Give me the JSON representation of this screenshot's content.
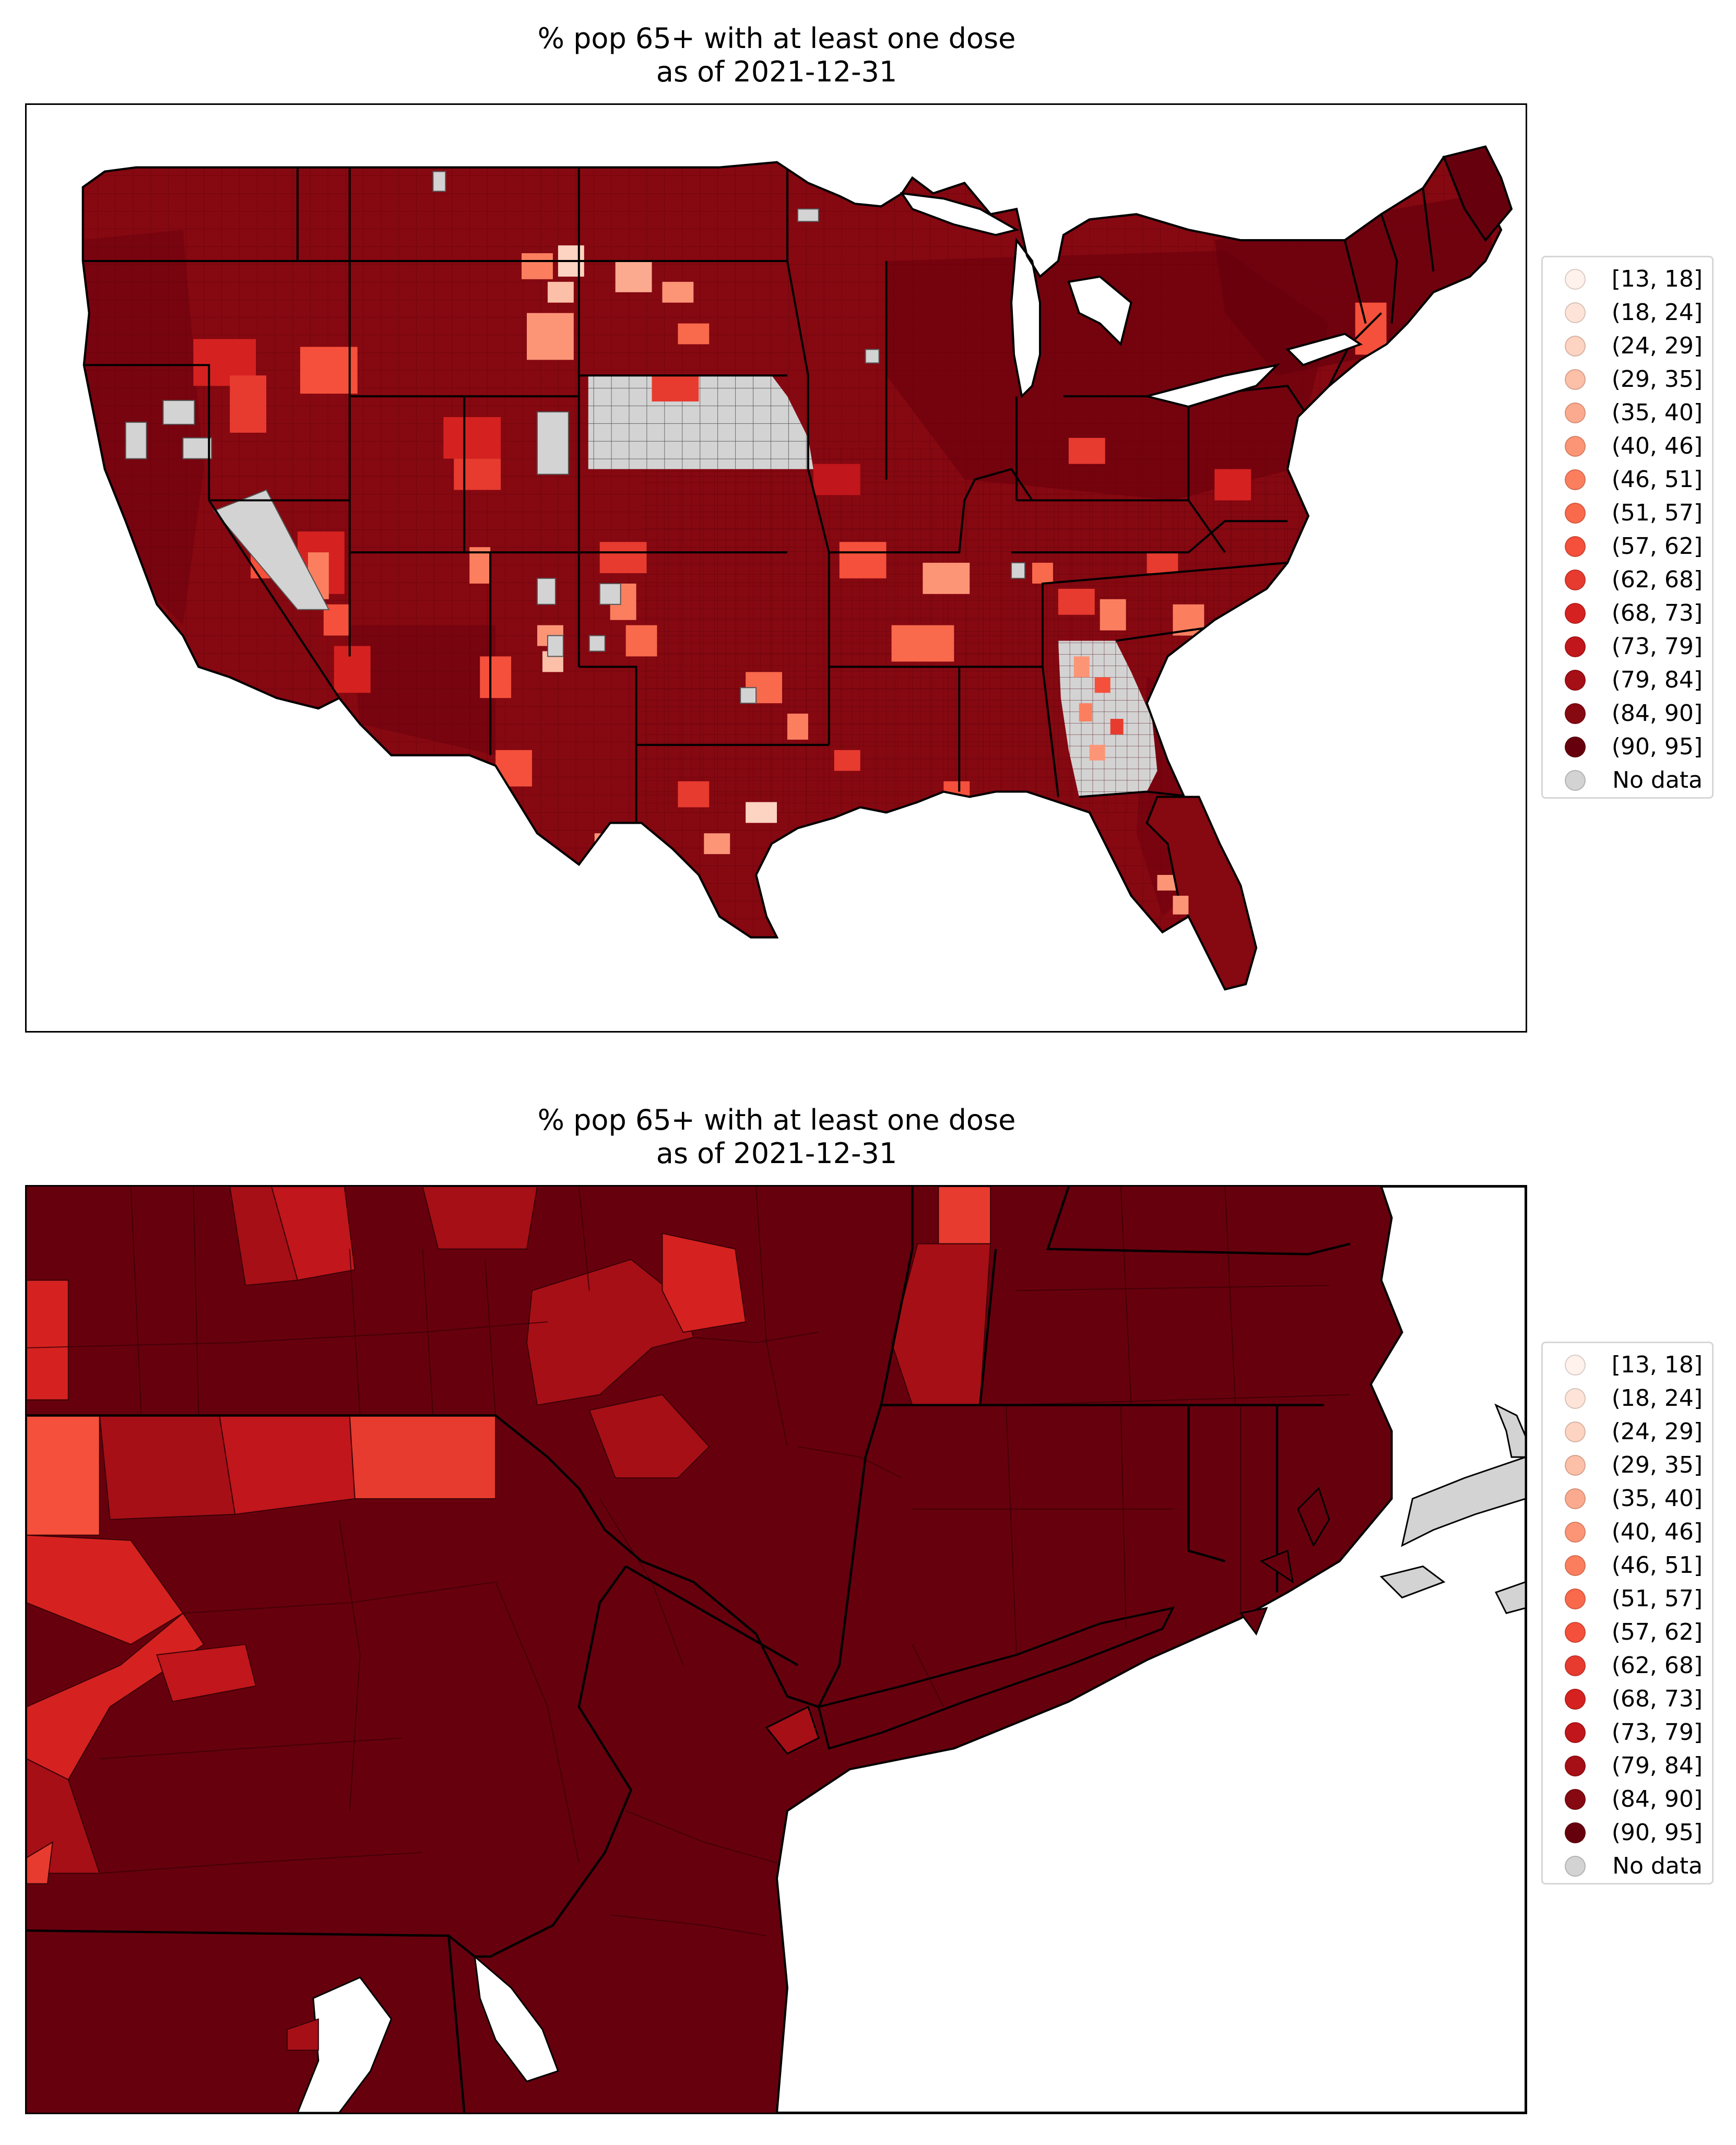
{
  "panels": [
    {
      "title_line1": "% pop 65+ with at least one dose",
      "title_line2": "as of 2021-12-31",
      "view": "contiguous-us"
    },
    {
      "title_line1": "% pop 65+ with at least one dose",
      "title_line2": "as of 2021-12-31",
      "view": "northeast-zoom"
    }
  ],
  "legend": {
    "items": [
      {
        "label": "[13, 18]",
        "color": "#fff1ec"
      },
      {
        "label": "(18, 24]",
        "color": "#fee4d8"
      },
      {
        "label": "(24, 29]",
        "color": "#fdd3c1"
      },
      {
        "label": "(29, 35]",
        "color": "#fcbfa8"
      },
      {
        "label": "(35, 40]",
        "color": "#fcaa8f"
      },
      {
        "label": "(40, 46]",
        "color": "#fc9576"
      },
      {
        "label": "(46, 51]",
        "color": "#fb7f5f"
      },
      {
        "label": "(51, 57]",
        "color": "#f9694c"
      },
      {
        "label": "(57, 62]",
        "color": "#f4503b"
      },
      {
        "label": "(62, 68]",
        "color": "#e73b2f"
      },
      {
        "label": "(68, 73]",
        "color": "#d52220"
      },
      {
        "label": "(73, 79]",
        "color": "#c0161c"
      },
      {
        "label": "(79, 84]",
        "color": "#a60f16"
      },
      {
        "label": "(84, 90]",
        "color": "#860811"
      },
      {
        "label": "(90, 95]",
        "color": "#67000d"
      },
      {
        "label": "No data",
        "color": "#d3d3d3"
      }
    ]
  },
  "map_colors": {
    "dominant": "#860811",
    "darkest": "#67000d",
    "no_data": "#d3d3d3",
    "border": "#000000",
    "water": "#ffffff"
  }
}
